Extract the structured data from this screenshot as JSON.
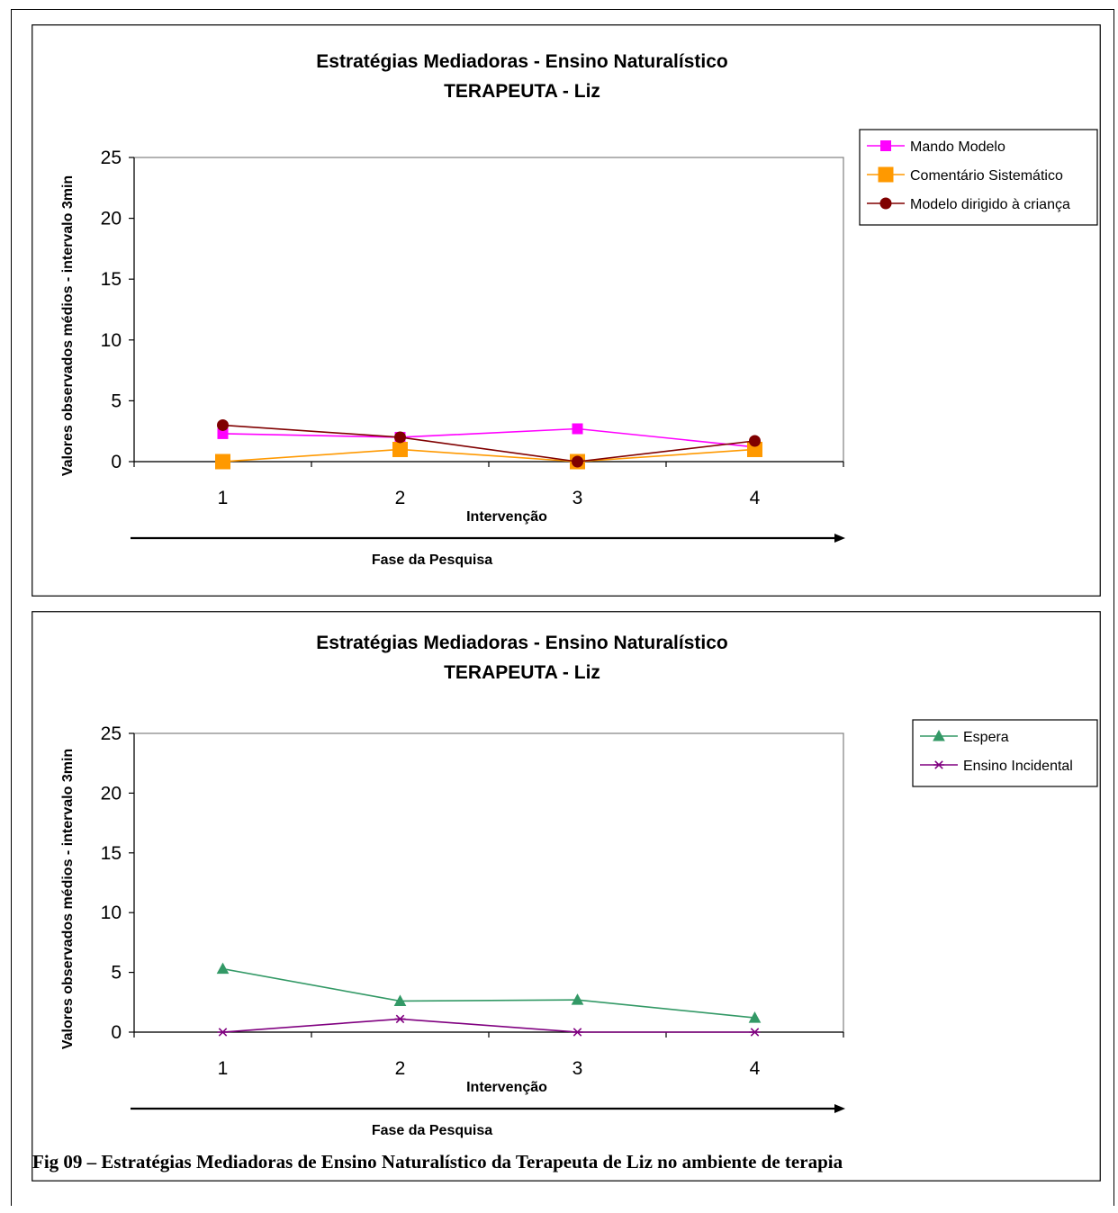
{
  "chart_data": [
    {
      "type": "line",
      "title": "Estratégias Mediadoras - Ensino Naturalístico",
      "subtitle": "TERAPEUTA - Liz",
      "xlabel": "Intervenção",
      "ylabel": "Valores observados médios - intervalo 3min",
      "phase_label": "Fase da Pesquisa",
      "categories": [
        "1",
        "2",
        "3",
        "4"
      ],
      "yticks": [
        "0",
        "5",
        "10",
        "15",
        "20",
        "25"
      ],
      "ylim": [
        0,
        25
      ],
      "grid": false,
      "legend_position": "right",
      "series": [
        {
          "name": "Mando Modelo",
          "values": [
            2.3,
            2.0,
            2.7,
            1.2
          ],
          "color": "#ff00ff",
          "marker": "square-small"
        },
        {
          "name": "Comentário Sistemático",
          "values": [
            0,
            1.0,
            0,
            1.0
          ],
          "color": "#ff9900",
          "marker": "square-large"
        },
        {
          "name": "Modelo dirigido à criança",
          "values": [
            3.0,
            2.0,
            0,
            1.7
          ],
          "color": "#800000",
          "marker": "circle"
        }
      ]
    },
    {
      "type": "line",
      "title": "Estratégias Mediadoras - Ensino Naturalístico",
      "subtitle": "TERAPEUTA - Liz",
      "xlabel": "Intervenção",
      "ylabel": "Valores observados médios - intervalo 3min",
      "phase_label": "Fase da Pesquisa",
      "categories": [
        "1",
        "2",
        "3",
        "4"
      ],
      "yticks": [
        "0",
        "5",
        "10",
        "15",
        "20",
        "25"
      ],
      "ylim": [
        0,
        25
      ],
      "grid": false,
      "legend_position": "right",
      "series": [
        {
          "name": "Espera",
          "values": [
            5.3,
            2.6,
            2.7,
            1.2
          ],
          "color": "#339966",
          "marker": "triangle"
        },
        {
          "name": "Ensino Incidental",
          "values": [
            0,
            1.1,
            0,
            0
          ],
          "color": "#800080",
          "marker": "asterisk"
        }
      ]
    }
  ],
  "caption": "Fig 09 – Estratégias Mediadoras de Ensino Naturalístico da Terapeuta de Liz no ambiente de terapia"
}
